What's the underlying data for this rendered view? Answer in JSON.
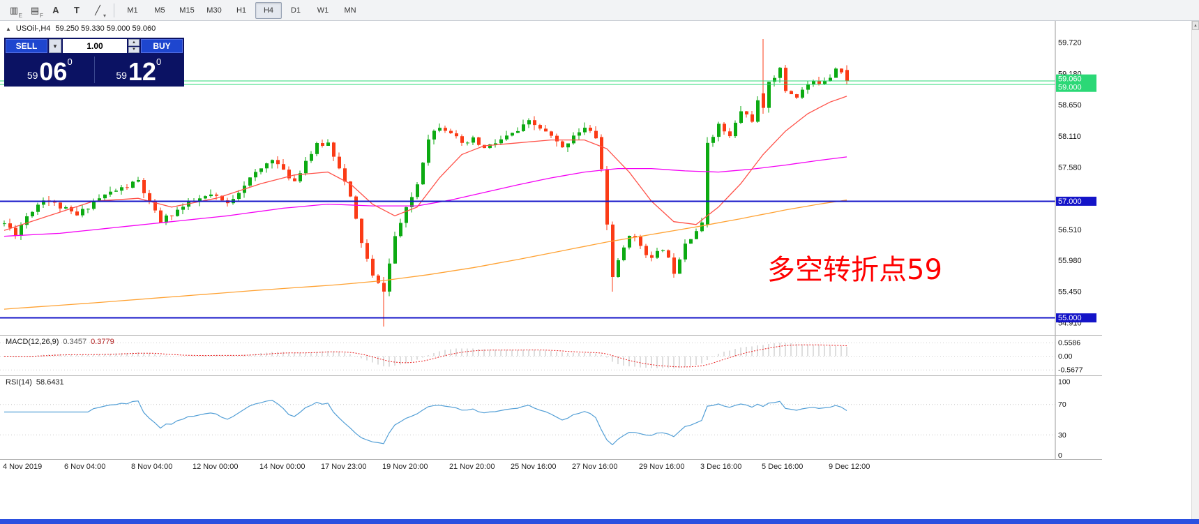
{
  "toolbar": {
    "icons": [
      {
        "name": "chart-indicators-icon",
        "glyph": "▥",
        "sub": "E"
      },
      {
        "name": "object-list-icon",
        "glyph": "▤",
        "sub": "F"
      },
      {
        "name": "text-label-tool-icon",
        "glyph": "A",
        "sub": ""
      },
      {
        "name": "text-box-tool-icon",
        "glyph": "T",
        "sub": ""
      },
      {
        "name": "drawing-tools-icon",
        "glyph": "╱",
        "sub": "▾"
      }
    ],
    "timeframes": [
      "M1",
      "M5",
      "M15",
      "M30",
      "H1",
      "H4",
      "D1",
      "W1",
      "MN"
    ],
    "active_timeframe": "H4"
  },
  "symbol_line": {
    "toggle_icon": "▲",
    "symbol": "USOil-,H4",
    "ohlc": "59.250 59.330 59.000 59.060"
  },
  "trade_panel": {
    "sell_label": "SELL",
    "buy_label": "BUY",
    "volume": "1.00",
    "sell_price": {
      "small": "59",
      "big": "06",
      "sup": "0"
    },
    "buy_price": {
      "small": "59",
      "big": "12",
      "sup": "0"
    }
  },
  "annotation": {
    "text": "多空转折点59"
  },
  "price_axis": {
    "ticks": [
      "59.720",
      "59.180",
      "58.650",
      "58.110",
      "57.580",
      "57.000",
      "56.510",
      "55.980",
      "55.450",
      "54.910"
    ],
    "badges": [
      {
        "label": "59.060",
        "price": 59.06,
        "dy": -3,
        "type": "green"
      },
      {
        "label": "59.000",
        "price": 59.0,
        "dy": 4,
        "type": "green"
      },
      {
        "label": "57.000",
        "price": 57.0,
        "dy": 0,
        "type": "blue"
      },
      {
        "label": "55.000",
        "price": 55.0,
        "dy": 0,
        "type": "blue"
      }
    ]
  },
  "macd": {
    "name": "MACD(12,26,9)",
    "value_main": "0.3457",
    "value_signal": "0.3779",
    "axis": [
      "0.5586",
      "0.00",
      "-0.5677"
    ]
  },
  "rsi": {
    "name": "RSI(14)",
    "value": "58.6431",
    "axis": [
      "100",
      "70",
      "30",
      "0"
    ],
    "levels": [
      70,
      30
    ]
  },
  "time_axis": [
    "4 Nov 2019",
    "6 Nov 04:00",
    "8 Nov 04:00",
    "12 Nov 00:00",
    "14 Nov 00:00",
    "17 Nov 23:00",
    "19 Nov 20:00",
    "21 Nov 20:00",
    "25 Nov 16:00",
    "27 Nov 16:00",
    "29 Nov 16:00",
    "3 Dec 16:00",
    "5 Dec 16:00",
    "9 Dec 12:00"
  ],
  "colors": {
    "up_green": "#0caa12",
    "down_red": "#fb3b16",
    "ma_red": "#ff5148",
    "ma_magenta": "#f400f4",
    "ma_orange": "#ffa233",
    "hline_green": "#2bd876",
    "hline_blue": "#1414c8",
    "macd_hist": "#bdbdbd",
    "macd_signal": "#e81c1c",
    "rsi_line": "#539fd6",
    "panel_navy": "#0b1263",
    "trade_blue": "#1e46cf",
    "annotation_red": "#ff0000",
    "bottom_strip_blue": "#2b50e0"
  },
  "chart_data": {
    "type": "candlestick",
    "symbol": "USOil-",
    "timeframe": "H4",
    "current_bar": {
      "open": 59.25,
      "high": 59.33,
      "low": 59.0,
      "close": 59.06
    },
    "ylim": [
      54.72,
      60.1
    ],
    "n_candles": 152,
    "label_indices": [
      0,
      11,
      23,
      34,
      46,
      57,
      68,
      80,
      91,
      102,
      114,
      125,
      136,
      148
    ],
    "price_anchors": [
      [
        0,
        56.62
      ],
      [
        2,
        56.45
      ],
      [
        4,
        56.75
      ],
      [
        7,
        57.05
      ],
      [
        10,
        56.9
      ],
      [
        13,
        56.75
      ],
      [
        16,
        57.0
      ],
      [
        19,
        57.15
      ],
      [
        22,
        57.25
      ],
      [
        24,
        57.35
      ],
      [
        26,
        56.95
      ],
      [
        28,
        56.65
      ],
      [
        31,
        56.85
      ],
      [
        34,
        57.0
      ],
      [
        37,
        57.1
      ],
      [
        40,
        56.95
      ],
      [
        43,
        57.3
      ],
      [
        46,
        57.55
      ],
      [
        48,
        57.75
      ],
      [
        50,
        57.5
      ],
      [
        52,
        57.35
      ],
      [
        54,
        57.7
      ],
      [
        56,
        57.95
      ],
      [
        58,
        58.0
      ],
      [
        60,
        57.6
      ],
      [
        62,
        57.05
      ],
      [
        64,
        56.3
      ],
      [
        66,
        55.7
      ],
      [
        68,
        55.45
      ],
      [
        70,
        56.4
      ],
      [
        72,
        56.85
      ],
      [
        74,
        57.3
      ],
      [
        76,
        58.1
      ],
      [
        78,
        58.3
      ],
      [
        80,
        58.2
      ],
      [
        82,
        57.95
      ],
      [
        84,
        58.05
      ],
      [
        86,
        57.9
      ],
      [
        88,
        58.0
      ],
      [
        90,
        58.1
      ],
      [
        92,
        58.2
      ],
      [
        94,
        58.35
      ],
      [
        96,
        58.25
      ],
      [
        98,
        58.1
      ],
      [
        100,
        57.9
      ],
      [
        102,
        58.15
      ],
      [
        104,
        58.25
      ],
      [
        106,
        58.1
      ],
      [
        107,
        57.6
      ],
      [
        108,
        56.6
      ],
      [
        109,
        55.7
      ],
      [
        110,
        55.95
      ],
      [
        112,
        56.45
      ],
      [
        114,
        56.25
      ],
      [
        116,
        56.0
      ],
      [
        118,
        56.2
      ],
      [
        120,
        55.8
      ],
      [
        122,
        56.3
      ],
      [
        124,
        56.5
      ],
      [
        125,
        56.6
      ],
      [
        126,
        58.0
      ],
      [
        128,
        58.3
      ],
      [
        130,
        58.1
      ],
      [
        132,
        58.55
      ],
      [
        134,
        58.4
      ],
      [
        136,
        59.0
      ],
      [
        138,
        59.15
      ],
      [
        139,
        59.25
      ],
      [
        140,
        58.9
      ],
      [
        142,
        58.8
      ],
      [
        144,
        59.0
      ],
      [
        146,
        59.05
      ],
      [
        148,
        59.15
      ],
      [
        149,
        59.3
      ],
      [
        150,
        59.25
      ],
      [
        151,
        59.06
      ]
    ],
    "overrides": {
      "68": [
        55.6,
        55.7,
        54.85,
        55.45
      ],
      "107": [
        58.1,
        58.15,
        57.5,
        57.55
      ],
      "108": [
        57.55,
        57.6,
        56.5,
        56.6
      ],
      "109": [
        56.6,
        56.65,
        55.45,
        55.7
      ],
      "126": [
        56.6,
        58.1,
        56.55,
        58.0
      ],
      "136": [
        58.85,
        59.78,
        58.5,
        58.6
      ],
      "151": [
        59.25,
        59.33,
        59.0,
        59.06
      ]
    },
    "ma_red_anchors": [
      [
        0,
        56.5
      ],
      [
        8,
        56.75
      ],
      [
        16,
        57.0
      ],
      [
        24,
        57.05
      ],
      [
        30,
        56.9
      ],
      [
        38,
        57.05
      ],
      [
        46,
        57.3
      ],
      [
        52,
        57.45
      ],
      [
        58,
        57.5
      ],
      [
        62,
        57.3
      ],
      [
        66,
        56.95
      ],
      [
        70,
        56.75
      ],
      [
        74,
        56.9
      ],
      [
        78,
        57.4
      ],
      [
        82,
        57.8
      ],
      [
        86,
        57.95
      ],
      [
        92,
        58.0
      ],
      [
        98,
        58.05
      ],
      [
        104,
        58.05
      ],
      [
        108,
        57.9
      ],
      [
        112,
        57.5
      ],
      [
        116,
        57.0
      ],
      [
        120,
        56.65
      ],
      [
        124,
        56.6
      ],
      [
        128,
        56.9
      ],
      [
        132,
        57.3
      ],
      [
        136,
        57.8
      ],
      [
        140,
        58.2
      ],
      [
        144,
        58.5
      ],
      [
        148,
        58.7
      ],
      [
        151,
        58.8
      ]
    ],
    "ma_magenta_anchors": [
      [
        0,
        56.4
      ],
      [
        10,
        56.45
      ],
      [
        20,
        56.55
      ],
      [
        30,
        56.65
      ],
      [
        40,
        56.75
      ],
      [
        50,
        56.88
      ],
      [
        58,
        56.95
      ],
      [
        66,
        56.92
      ],
      [
        74,
        56.92
      ],
      [
        80,
        57.02
      ],
      [
        86,
        57.15
      ],
      [
        92,
        57.28
      ],
      [
        98,
        57.4
      ],
      [
        104,
        57.5
      ],
      [
        110,
        57.56
      ],
      [
        116,
        57.56
      ],
      [
        122,
        57.52
      ],
      [
        128,
        57.5
      ],
      [
        134,
        57.55
      ],
      [
        140,
        57.62
      ],
      [
        146,
        57.7
      ],
      [
        151,
        57.76
      ]
    ],
    "ma_orange_anchors": [
      [
        0,
        55.15
      ],
      [
        15,
        55.25
      ],
      [
        30,
        55.36
      ],
      [
        45,
        55.47
      ],
      [
        60,
        55.57
      ],
      [
        68,
        55.64
      ],
      [
        76,
        55.74
      ],
      [
        84,
        55.86
      ],
      [
        92,
        56.0
      ],
      [
        100,
        56.15
      ],
      [
        108,
        56.3
      ],
      [
        116,
        56.43
      ],
      [
        124,
        56.56
      ],
      [
        132,
        56.7
      ],
      [
        140,
        56.85
      ],
      [
        146,
        56.95
      ],
      [
        151,
        57.02
      ]
    ],
    "hlines": [
      {
        "price": 59.06,
        "color": "green"
      },
      {
        "price": 59.0,
        "color": "green"
      },
      {
        "price": 57.0,
        "color": "blue"
      },
      {
        "price": 55.0,
        "color": "blue"
      }
    ],
    "indicators": [
      {
        "name": "MACD",
        "params": [
          12,
          26,
          9
        ],
        "values": [
          0.3457,
          0.3779
        ]
      },
      {
        "name": "RSI",
        "params": [
          14
        ],
        "value": 58.6431
      }
    ]
  }
}
